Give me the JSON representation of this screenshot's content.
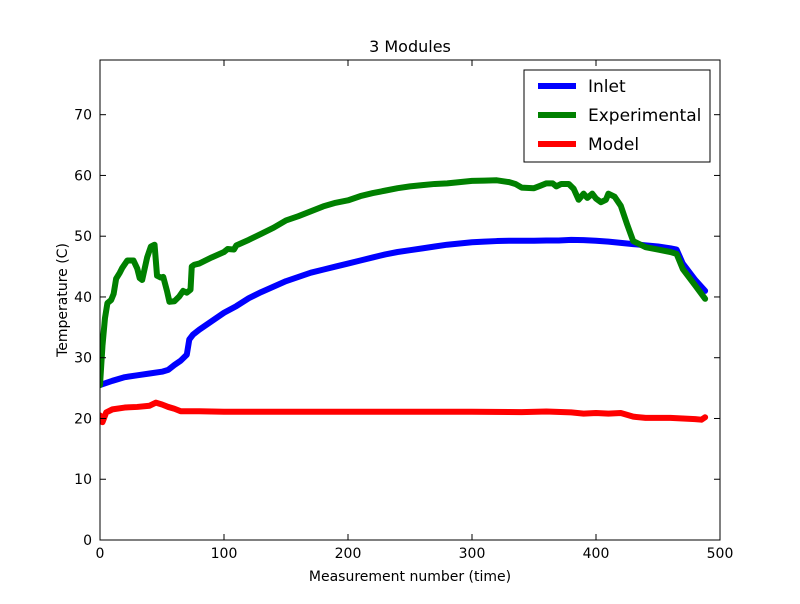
{
  "chart_data": {
    "type": "line",
    "title": "3 Modules",
    "xlabel": "Measurement number (time)",
    "ylabel": "Temperature (C)",
    "xlim": [
      0,
      500
    ],
    "ylim": [
      0,
      79
    ],
    "xticks": [
      0,
      100,
      200,
      300,
      400,
      500
    ],
    "yticks": [
      0,
      10,
      20,
      30,
      40,
      50,
      60,
      70
    ],
    "grid": false,
    "legend_position": "top-right",
    "series": [
      {
        "name": "Inlet",
        "color": "#0000ff",
        "points": [
          [
            0,
            25.5
          ],
          [
            10,
            26.2
          ],
          [
            20,
            26.8
          ],
          [
            30,
            27.1
          ],
          [
            40,
            27.4
          ],
          [
            50,
            27.7
          ],
          [
            55,
            28
          ],
          [
            60,
            28.8
          ],
          [
            65,
            29.5
          ],
          [
            70,
            30.5
          ],
          [
            72,
            33
          ],
          [
            75,
            33.8
          ],
          [
            80,
            34.6
          ],
          [
            90,
            36
          ],
          [
            100,
            37.4
          ],
          [
            110,
            38.5
          ],
          [
            120,
            39.8
          ],
          [
            130,
            40.8
          ],
          [
            140,
            41.7
          ],
          [
            150,
            42.6
          ],
          [
            160,
            43.3
          ],
          [
            170,
            44
          ],
          [
            180,
            44.5
          ],
          [
            190,
            45
          ],
          [
            200,
            45.5
          ],
          [
            210,
            46
          ],
          [
            220,
            46.5
          ],
          [
            230,
            47
          ],
          [
            240,
            47.4
          ],
          [
            250,
            47.7
          ],
          [
            260,
            48
          ],
          [
            270,
            48.3
          ],
          [
            280,
            48.6
          ],
          [
            290,
            48.8
          ],
          [
            300,
            49
          ],
          [
            310,
            49.1
          ],
          [
            320,
            49.2
          ],
          [
            330,
            49.25
          ],
          [
            340,
            49.25
          ],
          [
            350,
            49.25
          ],
          [
            360,
            49.3
          ],
          [
            370,
            49.3
          ],
          [
            380,
            49.4
          ],
          [
            390,
            49.35
          ],
          [
            400,
            49.25
          ],
          [
            410,
            49.1
          ],
          [
            420,
            48.9
          ],
          [
            430,
            48.7
          ],
          [
            440,
            48.5
          ],
          [
            450,
            48.3
          ],
          [
            460,
            48
          ],
          [
            465,
            47.8
          ],
          [
            470,
            45.5
          ],
          [
            480,
            42.8
          ],
          [
            488,
            41
          ]
        ]
      },
      {
        "name": "Experimental",
        "color": "#008000",
        "points": [
          [
            0,
            25.5
          ],
          [
            2,
            32
          ],
          [
            4,
            36.5
          ],
          [
            6,
            39
          ],
          [
            9,
            39.5
          ],
          [
            11,
            40.5
          ],
          [
            13,
            43
          ],
          [
            16,
            44
          ],
          [
            18,
            44.8
          ],
          [
            22,
            46
          ],
          [
            27,
            46
          ],
          [
            30,
            44.7
          ],
          [
            32,
            43.1
          ],
          [
            34,
            42.8
          ],
          [
            38,
            46.5
          ],
          [
            41,
            48.3
          ],
          [
            44,
            48.6
          ],
          [
            46,
            43.5
          ],
          [
            49,
            43.2
          ],
          [
            51,
            43.3
          ],
          [
            54,
            41
          ],
          [
            56,
            39.2
          ],
          [
            60,
            39.3
          ],
          [
            64,
            40.1
          ],
          [
            67,
            41
          ],
          [
            70,
            40.7
          ],
          [
            73,
            41.2
          ],
          [
            74,
            45
          ],
          [
            76,
            45.3
          ],
          [
            80,
            45.5
          ],
          [
            90,
            46.5
          ],
          [
            100,
            47.4
          ],
          [
            103,
            47.9
          ],
          [
            108,
            47.8
          ],
          [
            110,
            48.5
          ],
          [
            120,
            49.4
          ],
          [
            130,
            50.4
          ],
          [
            140,
            51.4
          ],
          [
            150,
            52.6
          ],
          [
            160,
            53.3
          ],
          [
            170,
            54.1
          ],
          [
            180,
            54.9
          ],
          [
            190,
            55.5
          ],
          [
            200,
            55.9
          ],
          [
            210,
            56.6
          ],
          [
            220,
            57.1
          ],
          [
            230,
            57.5
          ],
          [
            240,
            57.9
          ],
          [
            250,
            58.2
          ],
          [
            260,
            58.4
          ],
          [
            270,
            58.6
          ],
          [
            280,
            58.7
          ],
          [
            290,
            58.9
          ],
          [
            300,
            59.1
          ],
          [
            310,
            59.15
          ],
          [
            320,
            59.2
          ],
          [
            330,
            58.9
          ],
          [
            335,
            58.6
          ],
          [
            340,
            58
          ],
          [
            350,
            57.9
          ],
          [
            355,
            58.3
          ],
          [
            360,
            58.7
          ],
          [
            365,
            58.7
          ],
          [
            368,
            58.2
          ],
          [
            372,
            58.6
          ],
          [
            378,
            58.6
          ],
          [
            382,
            57.8
          ],
          [
            386,
            56
          ],
          [
            390,
            57
          ],
          [
            393,
            56.3
          ],
          [
            397,
            57
          ],
          [
            400,
            56.2
          ],
          [
            404,
            55.6
          ],
          [
            408,
            56
          ],
          [
            410,
            57
          ],
          [
            415,
            56.5
          ],
          [
            420,
            55
          ],
          [
            425,
            52
          ],
          [
            430,
            49.2
          ],
          [
            440,
            48.2
          ],
          [
            450,
            47.8
          ],
          [
            460,
            47.4
          ],
          [
            465,
            47.1
          ],
          [
            470,
            44.6
          ],
          [
            480,
            41.9
          ],
          [
            488,
            39.7
          ]
        ]
      },
      {
        "name": "Model",
        "color": "#ff0000",
        "points": [
          [
            0,
            20.5
          ],
          [
            2,
            19.4
          ],
          [
            5,
            21
          ],
          [
            10,
            21.5
          ],
          [
            20,
            21.8
          ],
          [
            30,
            21.9
          ],
          [
            40,
            22.1
          ],
          [
            45,
            22.6
          ],
          [
            50,
            22.3
          ],
          [
            55,
            21.9
          ],
          [
            60,
            21.6
          ],
          [
            65,
            21.2
          ],
          [
            70,
            21.2
          ],
          [
            80,
            21.2
          ],
          [
            100,
            21.1
          ],
          [
            150,
            21.1
          ],
          [
            200,
            21.1
          ],
          [
            250,
            21.1
          ],
          [
            300,
            21.1
          ],
          [
            340,
            21.05
          ],
          [
            360,
            21.15
          ],
          [
            380,
            21
          ],
          [
            390,
            20.8
          ],
          [
            400,
            20.9
          ],
          [
            410,
            20.8
          ],
          [
            420,
            20.9
          ],
          [
            430,
            20.3
          ],
          [
            440,
            20.1
          ],
          [
            460,
            20.1
          ],
          [
            480,
            19.9
          ],
          [
            485,
            19.8
          ],
          [
            488,
            20.2
          ]
        ]
      }
    ]
  }
}
